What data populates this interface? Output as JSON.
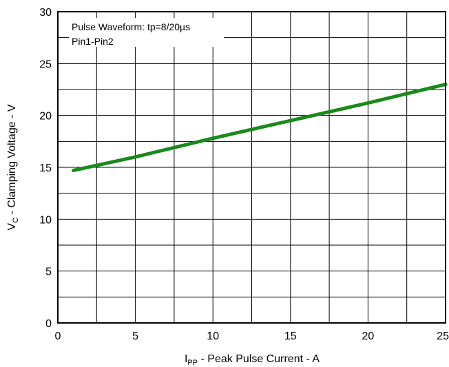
{
  "chart_data": {
    "type": "line",
    "xlabel": {
      "main": "I",
      "sub": "PP",
      "rest": " - Peak Pulse Current - A"
    },
    "ylabel": {
      "main": "V",
      "sub": "C",
      "rest": " - Clamping Voltage - V"
    },
    "xlim": [
      0,
      25
    ],
    "ylim": [
      0,
      30
    ],
    "x_ticks": [
      0,
      5,
      10,
      15,
      20,
      25
    ],
    "x_tick_labels": [
      "0",
      "5",
      "10",
      "15",
      "20",
      "25"
    ],
    "y_ticks": [
      0,
      5,
      10,
      15,
      20,
      25,
      30
    ],
    "y_tick_labels": [
      "0",
      "5",
      "10",
      "15",
      "20",
      "25",
      "30"
    ],
    "x_grid_step": 2.5,
    "y_grid_step": 2.5,
    "grid": true,
    "annotations": [
      "Pulse Waveform: tp=8/20µs",
      "Pin1-Pin2"
    ],
    "series": [
      {
        "color": "#1a8a1a",
        "x": [
          1,
          5,
          10,
          15,
          20,
          25
        ],
        "y": [
          14.7,
          16.0,
          17.8,
          19.5,
          21.2,
          23.0
        ]
      }
    ]
  }
}
